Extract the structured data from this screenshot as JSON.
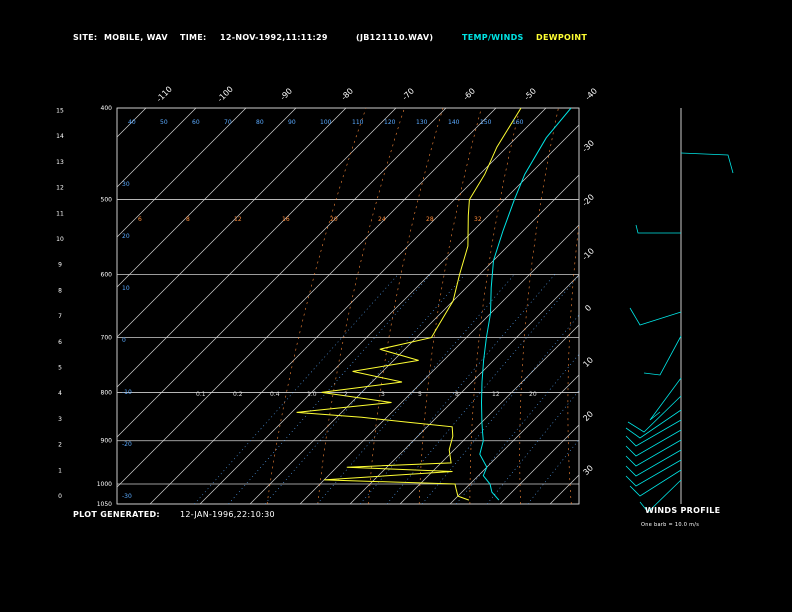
{
  "header": {
    "site_label": "SITE:",
    "site_value": "MOBILE, WAV",
    "time_label": "TIME:",
    "time_value": "12-NOV-1992,11:11:29",
    "file_value": "(JB121110.WAV)",
    "legend_temp": "TEMP/WINDS",
    "legend_dew": "DEWPOINT"
  },
  "footer": {
    "generated_label": "PLOT GENERATED:",
    "generated_value": "12-JAN-1996,22:10:30"
  },
  "winds_panel": {
    "title": "WINDS PROFILE",
    "subtitle": "One barb = 10.0 m/s"
  },
  "colors": {
    "background": "#000000",
    "temp": "#00e5e5",
    "dewpoint": "#ffff33",
    "isotherm": "#d0d0d0",
    "isobar": "#d0d0d0",
    "dry_adiabat": "#ff8c3a",
    "moist_adiabat": "#ff8c3a",
    "mixing_ratio": "#5aaaff",
    "label_blue": "#5aaaff",
    "label_orange": "#ff8c3a"
  },
  "chart_data": {
    "type": "line",
    "pressure_range": [
      1050,
      400
    ],
    "temperature_range": [
      -40,
      40
    ],
    "pressure_levels": [
      {
        "p": 400,
        "label": "400"
      },
      {
        "p": 500,
        "label": "500"
      },
      {
        "p": 600,
        "label": "600"
      },
      {
        "p": 700,
        "label": "700"
      },
      {
        "p": 800,
        "label": "800"
      },
      {
        "p": 900,
        "label": "900"
      },
      {
        "p": 1000,
        "label": "1000"
      },
      {
        "p": 1050,
        "label": "1050"
      }
    ],
    "height_labels": [
      "0",
      "1",
      "2",
      "3",
      "4",
      "5",
      "6",
      "7",
      "8",
      "9",
      "10",
      "11",
      "12",
      "13",
      "14",
      "15"
    ],
    "top_temp_labels": [
      "-110",
      "-100",
      "-90",
      "-80",
      "-70",
      "-60",
      "-50",
      "-40"
    ],
    "right_temp_labels": [
      "-30",
      "-20",
      "-10",
      "0",
      "10",
      "20",
      "30"
    ],
    "mixing_ratio_labels": [
      "0.1",
      "0.2",
      "0.4",
      "1.0",
      "2",
      "3",
      "5",
      "8",
      "12",
      "20"
    ],
    "theta_labels_top": [
      "40",
      "50",
      "60",
      "70",
      "80",
      "90",
      "100",
      "110",
      "120",
      "130",
      "140",
      "150",
      "160"
    ],
    "theta_labels_left": [
      "30",
      "20",
      "10",
      "0",
      "-10",
      "-20",
      "-30"
    ],
    "moist_labels": [
      "6",
      "8",
      "12",
      "16",
      "20",
      "24",
      "28",
      "32"
    ],
    "temperature": [
      {
        "p": 400,
        "t": -45
      },
      {
        "p": 430,
        "t": -44
      },
      {
        "p": 470,
        "t": -41
      },
      {
        "p": 500,
        "t": -38
      },
      {
        "p": 540,
        "t": -34
      },
      {
        "p": 580,
        "t": -30
      },
      {
        "p": 620,
        "t": -25
      },
      {
        "p": 660,
        "t": -20
      },
      {
        "p": 700,
        "t": -16
      },
      {
        "p": 740,
        "t": -12
      },
      {
        "p": 780,
        "t": -8
      },
      {
        "p": 820,
        "t": -4
      },
      {
        "p": 860,
        "t": 0
      },
      {
        "p": 880,
        "t": 2
      },
      {
        "p": 900,
        "t": 4
      },
      {
        "p": 930,
        "t": 6
      },
      {
        "p": 960,
        "t": 10
      },
      {
        "p": 980,
        "t": 11
      },
      {
        "p": 1000,
        "t": 14
      },
      {
        "p": 1020,
        "t": 16
      },
      {
        "p": 1040,
        "t": 19
      }
    ],
    "dewpoint": [
      {
        "p": 400,
        "t": -55
      },
      {
        "p": 440,
        "t": -52
      },
      {
        "p": 470,
        "t": -49
      },
      {
        "p": 500,
        "t": -47
      },
      {
        "p": 520,
        "t": -44
      },
      {
        "p": 560,
        "t": -38
      },
      {
        "p": 600,
        "t": -34
      },
      {
        "p": 640,
        "t": -30
      },
      {
        "p": 680,
        "t": -28
      },
      {
        "p": 700,
        "t": -27
      },
      {
        "p": 720,
        "t": -35
      },
      {
        "p": 740,
        "t": -25
      },
      {
        "p": 760,
        "t": -36
      },
      {
        "p": 780,
        "t": -24
      },
      {
        "p": 800,
        "t": -38
      },
      {
        "p": 820,
        "t": -22
      },
      {
        "p": 840,
        "t": -39
      },
      {
        "p": 850,
        "t": -25
      },
      {
        "p": 860,
        "t": -15
      },
      {
        "p": 870,
        "t": -5
      },
      {
        "p": 890,
        "t": -3
      },
      {
        "p": 920,
        "t": -1
      },
      {
        "p": 950,
        "t": 2
      },
      {
        "p": 960,
        "t": -18
      },
      {
        "p": 970,
        "t": 4
      },
      {
        "p": 990,
        "t": -20
      },
      {
        "p": 1000,
        "t": 7
      },
      {
        "p": 1010,
        "t": 8
      },
      {
        "p": 1030,
        "t": 10
      },
      {
        "p": 1040,
        "t": 13
      }
    ]
  }
}
